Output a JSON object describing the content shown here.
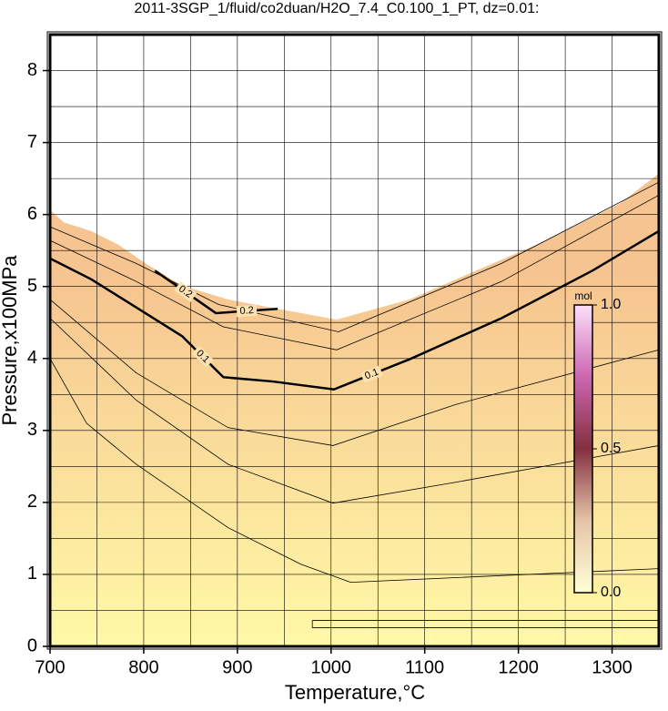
{
  "chart_data": {
    "type": "contour",
    "title": "2011-3SGP_1/fluid/co2duan/H2O_7.4_C0.100_1_PT, dz=0.01:",
    "x_label": "Temperature,°C",
    "y_label": "Pressure,x100MPa",
    "xlim": [
      700,
      1350
    ],
    "ylim": [
      0,
      8.5
    ],
    "xticks": [
      700,
      800,
      900,
      1000,
      1100,
      1200,
      1300
    ],
    "yticks": [
      0,
      1,
      2,
      3,
      4,
      5,
      6,
      7,
      8
    ],
    "xgrid": [
      750,
      800,
      850,
      900,
      950,
      1000,
      1050,
      1100,
      1150,
      1200,
      1250,
      1300
    ],
    "ygrid": [
      0.5,
      1,
      1.5,
      2,
      2.5,
      3,
      3.5,
      4,
      4.5,
      5,
      5.5,
      6,
      6.5,
      7,
      7.5,
      8
    ],
    "grid": true,
    "fill_colors": [
      "#fff9a6",
      "#f6c490"
    ],
    "boundary": {
      "x": [
        700,
        715,
        744,
        773,
        802,
        841,
        890,
        943,
        1006,
        1084,
        1162,
        1230,
        1308,
        1350
      ],
      "y": [
        6.06,
        5.89,
        5.77,
        5.58,
        5.32,
        5.01,
        4.82,
        4.69,
        4.54,
        4.82,
        5.26,
        5.64,
        6.15,
        6.57
      ]
    },
    "contours": [
      {
        "x": [
          700,
          739,
          792,
          890,
          968,
          1021,
          1350
        ],
        "y": [
          4.0,
          3.1,
          2.53,
          1.65,
          1.14,
          0.89,
          1.08
        ]
      },
      {
        "x": [
          700,
          792,
          890,
          1002,
          1133,
          1350
        ],
        "y": [
          4.56,
          3.42,
          2.53,
          1.99,
          2.28,
          2.79
        ]
      },
      {
        "x": [
          700,
          792,
          890,
          1002,
          1133,
          1350
        ],
        "y": [
          4.82,
          3.8,
          3.04,
          2.79,
          3.36,
          4.12
        ]
      },
      {
        "x": [
          700,
          744,
          792,
          841,
          885,
          938,
          1003,
          1084,
          1182,
          1279,
          1350
        ],
        "y": [
          5.39,
          5.1,
          4.71,
          4.31,
          3.74,
          3.68,
          3.57,
          3.99,
          4.56,
          5.22,
          5.77
        ],
        "bold": true,
        "labels": [
          "0.1",
          "0.1"
        ]
      },
      {
        "x": [
          700,
          792,
          885,
          1006,
          1182,
          1350
        ],
        "y": [
          5.64,
          5.07,
          4.44,
          4.12,
          5.07,
          6.27
        ]
      },
      {
        "x": [
          700,
          792,
          880,
          1008,
          1182,
          1350
        ],
        "y": [
          5.83,
          5.32,
          4.75,
          4.37,
          5.32,
          6.45
        ]
      },
      {
        "x": [
          812,
          877,
          943
        ],
        "y": [
          5.22,
          4.63,
          4.69
        ],
        "bold": true,
        "labels": [
          "0.2",
          "0.2"
        ]
      },
      {
        "x": [
          980,
          1350,
          1350,
          980,
          980
        ],
        "y": [
          0.36,
          0.36,
          0.26,
          0.26,
          0.36
        ]
      }
    ],
    "colorbar": {
      "label": "mol",
      "lim": [
        0,
        1
      ],
      "ticks": [
        {
          "value": 0,
          "label": "0.0"
        },
        0.5,
        {
          "value": 1,
          "label": "1.0"
        }
      ],
      "colors": [
        "#ffffd8",
        "#e6c4a8",
        "#843040",
        "#cc66b0",
        "#fbe0fb"
      ]
    }
  }
}
